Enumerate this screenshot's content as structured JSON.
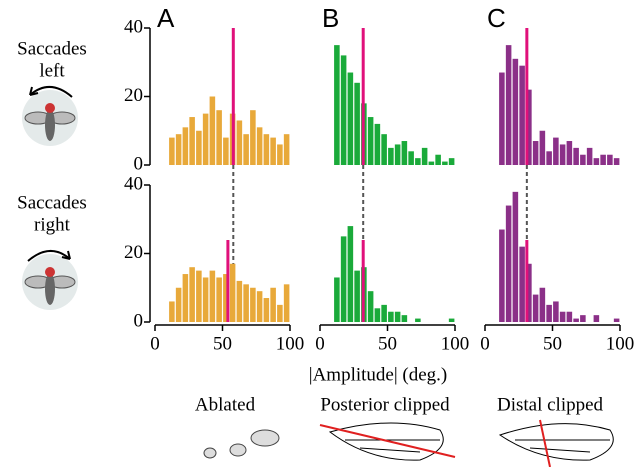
{
  "chart_data": [
    {
      "type": "histogram",
      "title": "A",
      "color": "#e8a93a",
      "median_color": "#e0107a",
      "median": 58,
      "bins": [
        10,
        15,
        20,
        25,
        30,
        35,
        40,
        45,
        50,
        55,
        60,
        65,
        70,
        75,
        80,
        85,
        90,
        95,
        100
      ],
      "values": [
        8,
        9,
        11,
        14,
        10,
        15,
        20,
        16,
        8,
        15,
        13,
        9,
        16,
        11,
        9,
        8,
        6,
        9
      ],
      "xlim": [
        0,
        100
      ],
      "ylim": [
        0,
        40
      ],
      "yticks": [
        0,
        20,
        40
      ]
    },
    {
      "type": "histogram",
      "title": "B",
      "color": "#1aaa3a",
      "median_color": "#e0107a",
      "median": 32,
      "bins": [
        10,
        15,
        20,
        25,
        30,
        35,
        40,
        45,
        50,
        55,
        60,
        65,
        70,
        75,
        80,
        85,
        90,
        95,
        100
      ],
      "values": [
        35,
        32,
        27,
        24,
        18,
        14,
        12,
        9,
        5,
        6,
        7,
        4,
        2,
        5,
        1,
        3,
        1,
        2
      ],
      "xlim": [
        0,
        100
      ],
      "ylim": [
        0,
        40
      ]
    },
    {
      "type": "histogram",
      "title": "C",
      "color": "#8b3088",
      "median_color": "#e0107a",
      "median": 31,
      "bins": [
        10,
        15,
        20,
        25,
        30,
        35,
        40,
        45,
        50,
        55,
        60,
        65,
        70,
        75,
        80,
        85,
        90,
        95,
        100
      ],
      "values": [
        27,
        35,
        31,
        29,
        22,
        7,
        10,
        4,
        8,
        6,
        7,
        5,
        3,
        5,
        2,
        3,
        3,
        2
      ],
      "xlim": [
        0,
        100
      ],
      "ylim": [
        0,
        40
      ]
    },
    {
      "type": "histogram",
      "color": "#e8a93a",
      "median_color": "#e0107a",
      "median": 54,
      "bins": [
        10,
        15,
        20,
        25,
        30,
        35,
        40,
        45,
        50,
        55,
        60,
        65,
        70,
        75,
        80,
        85,
        90,
        95,
        100
      ],
      "values": [
        6,
        10,
        14,
        16,
        15,
        13,
        15,
        13,
        14,
        17,
        12,
        11,
        10,
        9,
        7,
        10,
        5,
        11
      ],
      "xlim": [
        0,
        100
      ],
      "xticks": [
        0,
        50,
        100
      ],
      "ylim": [
        0,
        40
      ],
      "yticks": [
        0,
        20,
        40
      ]
    },
    {
      "type": "histogram",
      "color": "#1aaa3a",
      "median_color": "#e0107a",
      "median": 32,
      "bins": [
        10,
        15,
        20,
        25,
        30,
        35,
        40,
        45,
        50,
        55,
        60,
        65,
        70,
        75,
        80,
        85,
        90,
        95,
        100
      ],
      "values": [
        13,
        25,
        28,
        15,
        16,
        9,
        4,
        5,
        3,
        3,
        2,
        0,
        1,
        0,
        0,
        0,
        0,
        1
      ],
      "xlim": [
        0,
        100
      ],
      "xticks": [
        0,
        50,
        100
      ],
      "ylim": [
        0,
        40
      ]
    },
    {
      "type": "histogram",
      "color": "#8b3088",
      "median_color": "#e0107a",
      "median": 31,
      "bins": [
        10,
        15,
        20,
        25,
        30,
        35,
        40,
        45,
        50,
        55,
        60,
        65,
        70,
        75,
        80,
        85,
        90,
        95,
        100
      ],
      "values": [
        27,
        34,
        38,
        22,
        17,
        8,
        10,
        5,
        6,
        3,
        3,
        1,
        2,
        0,
        2,
        0,
        0,
        1
      ],
      "xlim": [
        0,
        100
      ],
      "xticks": [
        0,
        50,
        100
      ],
      "ylim": [
        0,
        40
      ]
    }
  ],
  "row_labels": [
    [
      "Saccades",
      "left"
    ],
    [
      "Saccades",
      "right"
    ]
  ],
  "x_label": "|Amplitude| (deg.)",
  "condition_labels": [
    "Ablated",
    "Posterior clipped",
    "Distal clipped"
  ]
}
